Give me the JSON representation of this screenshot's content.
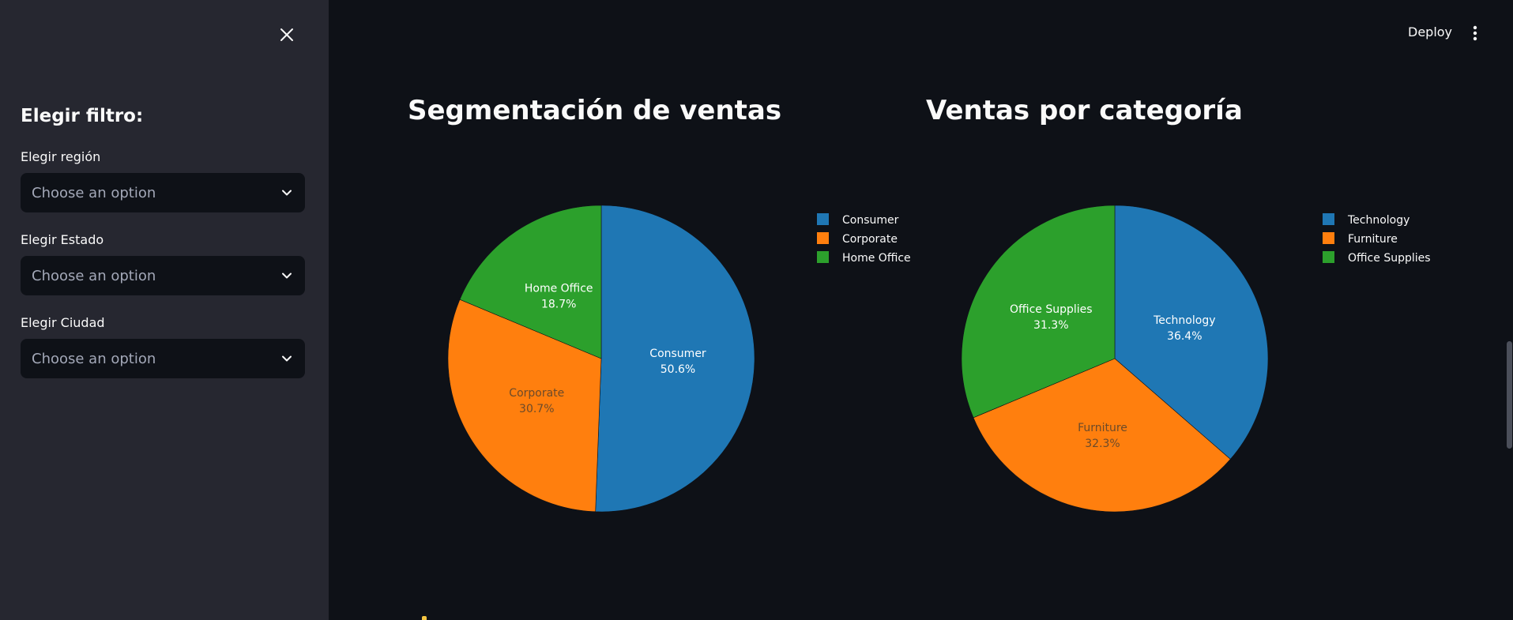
{
  "header": {
    "deploy_label": "Deploy"
  },
  "sidebar": {
    "title": "Elegir filtro:",
    "fields": [
      {
        "label": "Elegir región",
        "placeholder": "Choose an option"
      },
      {
        "label": "Elegir Estado",
        "placeholder": "Choose an option"
      },
      {
        "label": "Elegir Ciudad",
        "placeholder": "Choose an option"
      }
    ]
  },
  "colors": {
    "blue": "#1f77b4",
    "orange": "#ff7f0e",
    "green": "#2ca02c"
  },
  "chart_data": [
    {
      "type": "pie",
      "title": "Segmentación de ventas",
      "categories": [
        "Consumer",
        "Corporate",
        "Home Office"
      ],
      "values": [
        50.6,
        30.7,
        18.7
      ],
      "labels": [
        "50.6%",
        "30.7%",
        "18.7%"
      ],
      "colors": [
        "#1f77b4",
        "#ff7f0e",
        "#2ca02c"
      ],
      "legend": [
        "Consumer",
        "Corporate",
        "Home Office"
      ],
      "legend_position": "top-right"
    },
    {
      "type": "pie",
      "title": "Ventas por categoría",
      "categories": [
        "Technology",
        "Furniture",
        "Office Supplies"
      ],
      "values": [
        36.4,
        32.3,
        31.3
      ],
      "labels": [
        "36.4%",
        "32.3%",
        "31.3%"
      ],
      "colors": [
        "#1f77b4",
        "#ff7f0e",
        "#2ca02c"
      ],
      "legend": [
        "Technology",
        "Furniture",
        "Office Supplies"
      ],
      "legend_position": "top-right"
    }
  ]
}
